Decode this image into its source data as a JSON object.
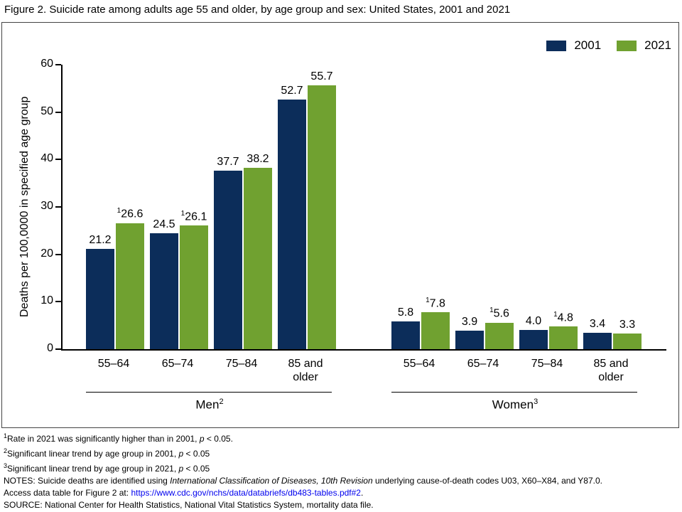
{
  "title": "Figure 2. Suicide rate among adults age 55 and older, by age group and sex: United States, 2001 and 2021",
  "colors": {
    "bar_2001": "#0C2D5A",
    "bar_2021": "#70A130",
    "link": "#0000EE",
    "axis": "#000000",
    "frame_border": "#444444"
  },
  "legend": {
    "items": [
      {
        "label": "2001",
        "color": "#0C2D5A"
      },
      {
        "label": "2021",
        "color": "#70A130"
      }
    ]
  },
  "chart_data": {
    "type": "bar",
    "title": "",
    "xlabel": "",
    "ylabel": "Deaths per 100,0000 in specified age group",
    "ylim": [
      0,
      60
    ],
    "yticks": [
      0,
      10,
      20,
      30,
      40,
      50,
      60
    ],
    "grid": false,
    "legend": [
      "2001",
      "2021"
    ],
    "legend_position": "top-right",
    "groups": [
      {
        "name": "Men",
        "sup": "2",
        "categories": [
          "55–64",
          "65–74",
          "75–84",
          "85 and\nolder"
        ],
        "series": [
          {
            "name": "2001",
            "values": [
              21.2,
              24.5,
              37.7,
              52.7
            ],
            "value_labels": [
              "21.2",
              "24.5",
              "37.7",
              "52.7"
            ],
            "sup_marks": [
              "",
              "",
              "",
              ""
            ]
          },
          {
            "name": "2021",
            "values": [
              26.6,
              26.1,
              38.2,
              55.7
            ],
            "value_labels": [
              "26.6",
              "26.1",
              "38.2",
              "55.7"
            ],
            "sup_marks": [
              "1",
              "1",
              "",
              ""
            ]
          }
        ]
      },
      {
        "name": "Women",
        "sup": "3",
        "categories": [
          "55–64",
          "65–74",
          "75–84",
          "85 and\nolder"
        ],
        "series": [
          {
            "name": "2001",
            "values": [
              5.8,
              3.9,
              4.0,
              3.4
            ],
            "value_labels": [
              "5.8",
              "3.9",
              "4.0",
              "3.4"
            ],
            "sup_marks": [
              "",
              "",
              "",
              ""
            ]
          },
          {
            "name": "2021",
            "values": [
              7.8,
              5.6,
              4.8,
              3.3
            ],
            "value_labels": [
              "7.8",
              "5.6",
              "4.8",
              "3.3"
            ],
            "sup_marks": [
              "1",
              "1",
              "1",
              ""
            ]
          }
        ]
      }
    ]
  },
  "footnotes": [
    {
      "sup": "1",
      "segments": [
        {
          "t": "Rate in 2021 was significantly higher than in 2001, "
        },
        {
          "t": "p",
          "italic": true
        },
        {
          "t": " < 0.05."
        }
      ]
    },
    {
      "sup": "2",
      "segments": [
        {
          "t": "Significant linear trend by age group in 2001, "
        },
        {
          "t": "p",
          "italic": true
        },
        {
          "t": " < 0.05"
        }
      ]
    },
    {
      "sup": "3",
      "segments": [
        {
          "t": "Significant linear trend by age group in 2021, "
        },
        {
          "t": "p",
          "italic": true
        },
        {
          "t": " < 0.05"
        }
      ]
    },
    {
      "segments": [
        {
          "t": "NOTES: Suicide deaths are identified using "
        },
        {
          "t": "International Classification of Diseases, 10th Revision",
          "italic": true
        },
        {
          "t": " underlying cause-of-death codes U03, X60–X84, and Y87.0."
        }
      ]
    },
    {
      "segments": [
        {
          "t": "Access data table for Figure 2 at: "
        },
        {
          "t": "https://www.cdc.gov/nchs/data/databriefs/db483-tables.pdf#2",
          "link": true
        },
        {
          "t": "."
        }
      ]
    },
    {
      "segments": [
        {
          "t": "SOURCE: National Center for Health Statistics, National Vital Statistics System, mortality data file."
        }
      ]
    }
  ]
}
